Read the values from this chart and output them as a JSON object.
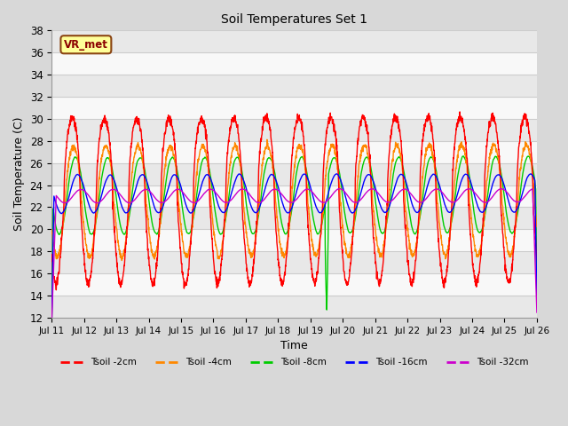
{
  "title": "Soil Temperatures Set 1",
  "xlabel": "Time",
  "ylabel": "Soil Temperature (C)",
  "ylim": [
    12,
    38
  ],
  "yticks": [
    12,
    14,
    16,
    18,
    20,
    22,
    24,
    26,
    28,
    30,
    32,
    34,
    36,
    38
  ],
  "colors": {
    "Tsoil -2cm": "#ff0000",
    "Tsoil -4cm": "#ff8800",
    "Tsoil -8cm": "#00cc00",
    "Tsoil -16cm": "#0000ff",
    "Tsoil -32cm": "#cc00cc"
  },
  "annotation_text": "VR_met",
  "bg_color": "#d8d8d8",
  "plot_bg_light": "#e8e8e8",
  "plot_bg_dark": "#d0d0d0",
  "grid_color": "#ffffff",
  "band_colors": [
    "#ffffff",
    "#e0e0e0"
  ]
}
